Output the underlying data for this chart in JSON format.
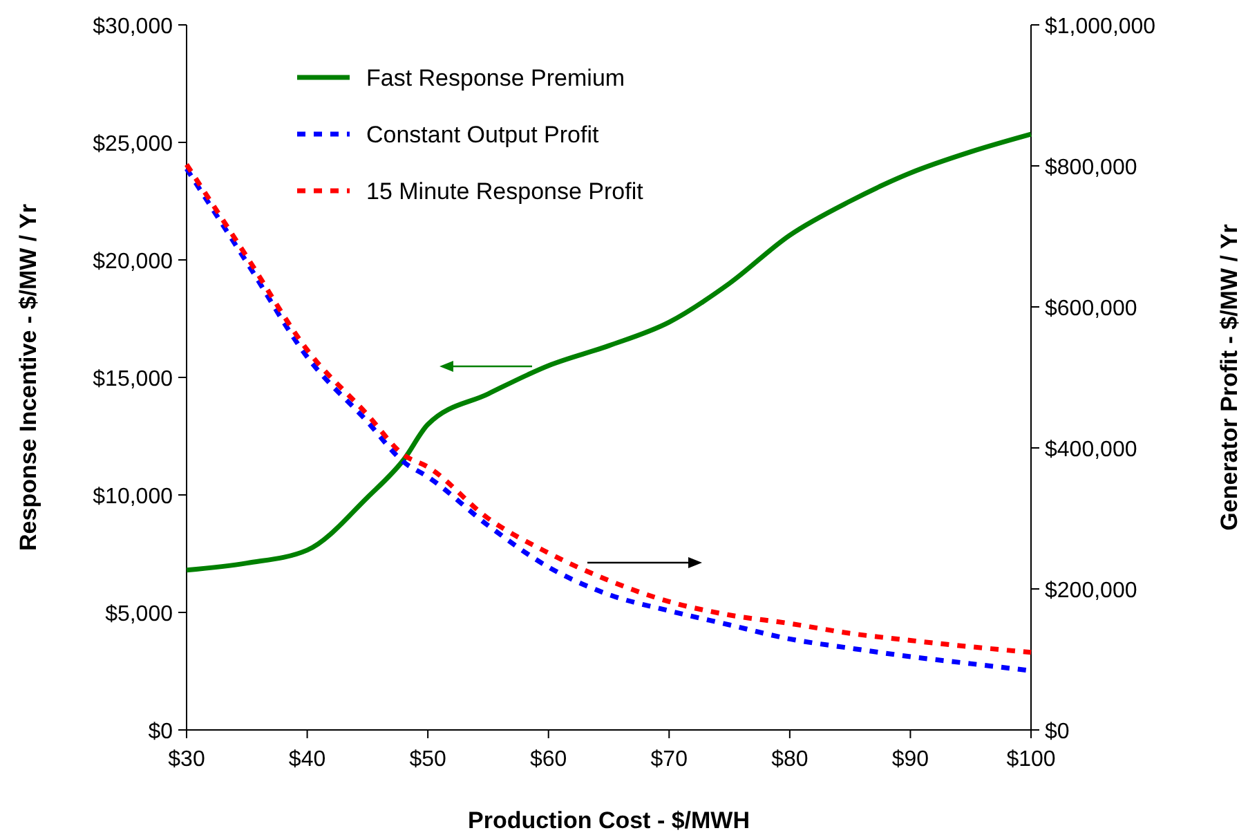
{
  "chart_data": {
    "type": "line",
    "xlabel": "Production Cost - $/MWH",
    "ylabel": "Response Incentive - $/MW / Yr",
    "y2label": "Generator Profit - $/MW / Yr",
    "x": [
      30,
      35,
      40,
      45,
      48,
      50,
      55,
      60,
      65,
      70,
      75,
      80,
      85,
      90,
      95,
      100
    ],
    "xlim": [
      30,
      100
    ],
    "xticks": [
      {
        "value": 30,
        "label": "$30"
      },
      {
        "value": 40,
        "label": "$40"
      },
      {
        "value": 50,
        "label": "$50"
      },
      {
        "value": 60,
        "label": "$60"
      },
      {
        "value": 70,
        "label": "$70"
      },
      {
        "value": 80,
        "label": "$80"
      },
      {
        "value": 90,
        "label": "$90"
      },
      {
        "value": 100,
        "label": "$100"
      }
    ],
    "ylim": [
      0,
      30000
    ],
    "yticks": [
      {
        "value": 0,
        "label": "$0"
      },
      {
        "value": 5000,
        "label": "$5,000"
      },
      {
        "value": 10000,
        "label": "$10,000"
      },
      {
        "value": 15000,
        "label": "$15,000"
      },
      {
        "value": 20000,
        "label": "$20,000"
      },
      {
        "value": 25000,
        "label": "$25,000"
      },
      {
        "value": 30000,
        "label": "$30,000"
      }
    ],
    "y2lim": [
      0,
      1000000
    ],
    "y2ticks": [
      {
        "value": 0,
        "label": "$0"
      },
      {
        "value": 200000,
        "label": "$200,000"
      },
      {
        "value": 400000,
        "label": "$400,000"
      },
      {
        "value": 600000,
        "label": "$600,000"
      },
      {
        "value": 800000,
        "label": "$800,000"
      },
      {
        "value": 1000000,
        "label": "$1,000,000"
      }
    ],
    "legend": "top left",
    "grid": false,
    "series": [
      {
        "name": "Fast Response Premium",
        "color": "#008000",
        "line_style": "solid",
        "values": [
          6800,
          7100,
          7650,
          9900,
          11500,
          13000,
          14300,
          15500,
          16350,
          17350,
          19000,
          21050,
          22500,
          23700,
          24600,
          25350
        ]
      },
      {
        "name": "Constant Output Profit",
        "color": "#0000ff",
        "line_style": "dashed",
        "axis": "y2",
        "values": [
          796000,
          663000,
          529000,
          437000,
          380000,
          359000,
          290000,
          231000,
          192000,
          169000,
          149000,
          129000,
          116000,
          104000,
          94000,
          84000
        ]
      },
      {
        "name": "15 Minute Response Profit",
        "color": "#ff0000",
        "line_style": "dashed",
        "axis": "y2",
        "values": [
          802000,
          671000,
          539000,
          447000,
          390000,
          373000,
          300000,
          251000,
          212000,
          182000,
          163000,
          151000,
          137000,
          127000,
          118000,
          110000
        ]
      }
    ]
  }
}
